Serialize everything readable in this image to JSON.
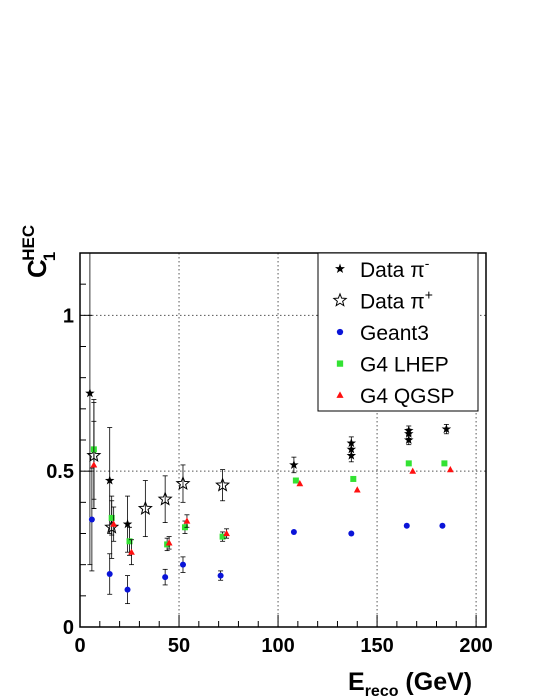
{
  "chart_data": {
    "type": "scatter",
    "title": "",
    "xlabel": "E",
    "xlabel_sub": "reco",
    "xlabel_unit": " (GeV)",
    "ylabel": "C",
    "ylabel_sub": "1",
    "ylabel_sup": "HEC",
    "xlim": [
      0,
      205
    ],
    "ylim": [
      0,
      1.2
    ],
    "xticks": [
      0,
      50,
      100,
      150,
      200
    ],
    "yticks": [
      0,
      0.5,
      1
    ],
    "ytick_labels": [
      "0",
      "0.5",
      "1"
    ],
    "grid": true,
    "legend_position": "top-right",
    "series": [
      {
        "name": "Data π",
        "name_sup": "-",
        "marker": "star-filled",
        "color": "#000000",
        "points": [
          {
            "x": 5,
            "y": 0.75,
            "err": 0.55
          },
          {
            "x": 15,
            "y": 0.47,
            "err": 0.17
          },
          {
            "x": 24,
            "y": 0.33,
            "err": 0.09
          },
          {
            "x": 108,
            "y": 0.52,
            "err": 0.025
          },
          {
            "x": 137,
            "y": 0.59,
            "err": 0.02
          },
          {
            "x": 137,
            "y": 0.57,
            "err": 0.02
          },
          {
            "x": 137,
            "y": 0.55,
            "err": 0.02
          },
          {
            "x": 166,
            "y": 0.63,
            "err": 0.015
          },
          {
            "x": 166,
            "y": 0.62,
            "err": 0.015
          },
          {
            "x": 166,
            "y": 0.6,
            "err": 0.015
          },
          {
            "x": 185,
            "y": 0.635,
            "err": 0.015
          }
        ]
      },
      {
        "name": "Data π",
        "name_sup": "+",
        "marker": "star-open",
        "color": "#000000",
        "points": [
          {
            "x": 7,
            "y": 0.55,
            "err": 0.17
          },
          {
            "x": 16,
            "y": 0.32,
            "err": 0.1
          },
          {
            "x": 33,
            "y": 0.38,
            "err": 0.09
          },
          {
            "x": 43,
            "y": 0.41,
            "err": 0.075
          },
          {
            "x": 52,
            "y": 0.46,
            "err": 0.06
          },
          {
            "x": 72,
            "y": 0.455,
            "err": 0.05
          }
        ]
      },
      {
        "name": "Geant3",
        "marker": "circle",
        "color": "#0a14d8",
        "points": [
          {
            "x": 6,
            "y": 0.345,
            "err": 0.165
          },
          {
            "x": 15,
            "y": 0.17,
            "err": 0.065
          },
          {
            "x": 24,
            "y": 0.12,
            "err": 0.045
          },
          {
            "x": 43,
            "y": 0.16,
            "err": 0.025
          },
          {
            "x": 52,
            "y": 0.2,
            "err": 0.025
          },
          {
            "x": 71,
            "y": 0.165,
            "err": 0.015
          },
          {
            "x": 108,
            "y": 0.305,
            "err": 0
          },
          {
            "x": 137,
            "y": 0.3,
            "err": 0
          },
          {
            "x": 165,
            "y": 0.325,
            "err": 0
          },
          {
            "x": 183,
            "y": 0.325,
            "err": 0
          }
        ]
      },
      {
        "name": "G4 LHEP",
        "marker": "square",
        "color": "#33e233",
        "points": [
          {
            "x": 7,
            "y": 0.57,
            "err": 0.16
          },
          {
            "x": 16,
            "y": 0.35,
            "err": 0.055
          },
          {
            "x": 25,
            "y": 0.275,
            "err": 0.045
          },
          {
            "x": 44,
            "y": 0.265,
            "err": 0.02
          },
          {
            "x": 53,
            "y": 0.32,
            "err": 0.02
          },
          {
            "x": 72,
            "y": 0.29,
            "err": 0.015
          },
          {
            "x": 109,
            "y": 0.47,
            "err": 0
          },
          {
            "x": 138,
            "y": 0.475,
            "err": 0
          },
          {
            "x": 166,
            "y": 0.525,
            "err": 0
          },
          {
            "x": 184,
            "y": 0.525,
            "err": 0
          }
        ]
      },
      {
        "name": "G4 QGSP",
        "marker": "triangle",
        "color": "#ff1010",
        "points": [
          {
            "x": 7,
            "y": 0.52,
            "err": 0.14
          },
          {
            "x": 17,
            "y": 0.33,
            "err": 0.055
          },
          {
            "x": 26,
            "y": 0.24,
            "err": 0.04
          },
          {
            "x": 45,
            "y": 0.27,
            "err": 0.02
          },
          {
            "x": 54,
            "y": 0.34,
            "err": 0.02
          },
          {
            "x": 74,
            "y": 0.3,
            "err": 0.015
          },
          {
            "x": 111,
            "y": 0.46,
            "err": 0
          },
          {
            "x": 140,
            "y": 0.44,
            "err": 0
          },
          {
            "x": 168,
            "y": 0.5,
            "err": 0
          },
          {
            "x": 187,
            "y": 0.505,
            "err": 0
          }
        ]
      }
    ]
  }
}
